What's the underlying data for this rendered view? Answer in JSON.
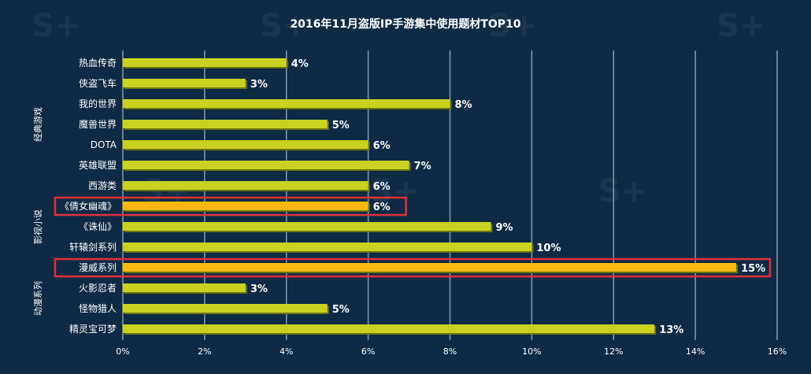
{
  "chart_data": {
    "type": "bar",
    "orientation": "horizontal",
    "title": "2016年11月盗版IP手游集中使用题材TOP10",
    "xlim": [
      0,
      16
    ],
    "x_ticks": [
      "0%",
      "2%",
      "4%",
      "6%",
      "8%",
      "10%",
      "12%",
      "14%",
      "16%"
    ],
    "grid": true,
    "groups": [
      {
        "name": "经典游戏",
        "categories": [
          "热血传奇",
          "侠盗飞车",
          "我的世界",
          "魔兽世界",
          "DOTA",
          "英雄联盟",
          "西游类"
        ]
      },
      {
        "name": "影视小说",
        "categories": [
          "《倩女幽魂》",
          "《诛仙》",
          "轩辕剑系列"
        ]
      },
      {
        "name": "动漫系列",
        "categories": [
          "漫威系列",
          "火影忍者",
          "怪物猎人",
          "精灵宝可梦"
        ]
      }
    ],
    "categories": [
      "热血传奇",
      "侠盗飞车",
      "我的世界",
      "魔兽世界",
      "DOTA",
      "英雄联盟",
      "西游类",
      "《倩女幽魂》",
      "《诛仙》",
      "轩辕剑系列",
      "漫威系列",
      "火影忍者",
      "怪物猎人",
      "精灵宝可梦"
    ],
    "values": [
      4,
      3,
      8,
      5,
      6,
      7,
      6,
      6,
      9,
      10,
      15,
      3,
      5,
      13
    ],
    "value_labels": [
      "4%",
      "3%",
      "8%",
      "5%",
      "6%",
      "7%",
      "6%",
      "6%",
      "9%",
      "10%",
      "15%",
      "3%",
      "5%",
      "13%"
    ],
    "highlighted": [
      "《倩女幽魂》",
      "漫威系列"
    ],
    "bar_color": "#c9d220",
    "highlight_bar_color": "#f5b812",
    "highlight_box_color": "#e0303a",
    "grid_color": "#8a9aa8",
    "background_color": "#0f2a44"
  }
}
